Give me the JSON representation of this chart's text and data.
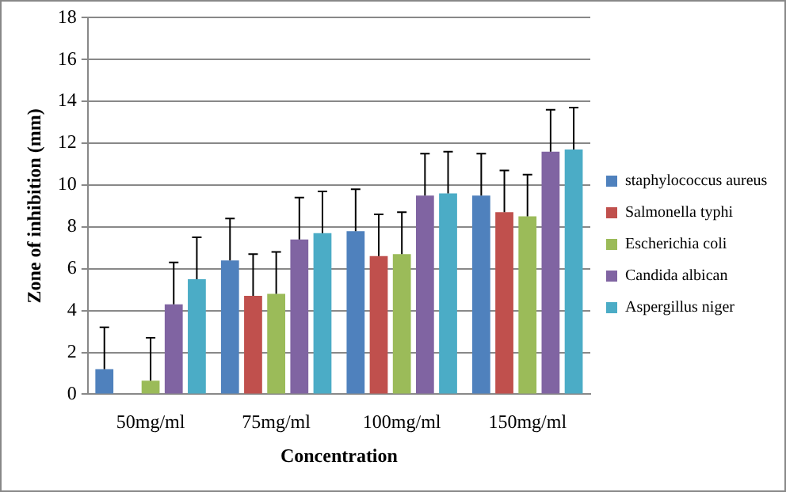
{
  "chart_data": {
    "type": "bar",
    "xlabel": "Concentration",
    "ylabel": "Zone of inhibition (mm)",
    "categories": [
      "50mg/ml",
      "75mg/ml",
      "100mg/ml",
      "150mg/ml"
    ],
    "series": [
      {
        "name": "staphylococcus aureus",
        "color": "#4f81bd",
        "values": [
          1.2,
          6.4,
          7.8,
          9.5
        ],
        "errors": [
          [
            1.2,
            3.2
          ],
          [
            6.4,
            8.4
          ],
          [
            7.8,
            9.8
          ],
          [
            9.5,
            11.5
          ]
        ]
      },
      {
        "name": "Salmonella typhi",
        "color": "#c0504d",
        "values": [
          0,
          4.7,
          6.6,
          8.7
        ],
        "errors": [
          null,
          [
            4.7,
            6.7
          ],
          [
            6.6,
            8.6
          ],
          [
            8.7,
            10.7
          ]
        ]
      },
      {
        "name": "Escherichia coli",
        "color": "#9bbb59",
        "values": [
          0.65,
          4.8,
          6.7,
          8.5
        ],
        "errors": [
          [
            0.65,
            2.7
          ],
          [
            4.8,
            6.8
          ],
          [
            6.7,
            8.7
          ],
          [
            8.5,
            10.5
          ]
        ]
      },
      {
        "name": "Candida albican",
        "color": "#8064a2",
        "values": [
          4.3,
          7.4,
          9.5,
          11.6
        ],
        "errors": [
          [
            4.3,
            6.3
          ],
          [
            7.4,
            9.4
          ],
          [
            9.5,
            11.5
          ],
          [
            11.6,
            13.6
          ]
        ]
      },
      {
        "name": "Aspergillus niger",
        "color": "#4bacc6",
        "values": [
          5.5,
          7.7,
          9.6,
          11.7
        ],
        "errors": [
          [
            5.5,
            7.5
          ],
          [
            7.7,
            9.7
          ],
          [
            9.6,
            11.6
          ],
          [
            11.7,
            13.7
          ]
        ]
      }
    ],
    "ylim": [
      0,
      18
    ],
    "yticks": [
      0,
      2,
      4,
      6,
      8,
      10,
      12,
      14,
      16,
      18
    ],
    "grid": "y",
    "legend": "right"
  }
}
